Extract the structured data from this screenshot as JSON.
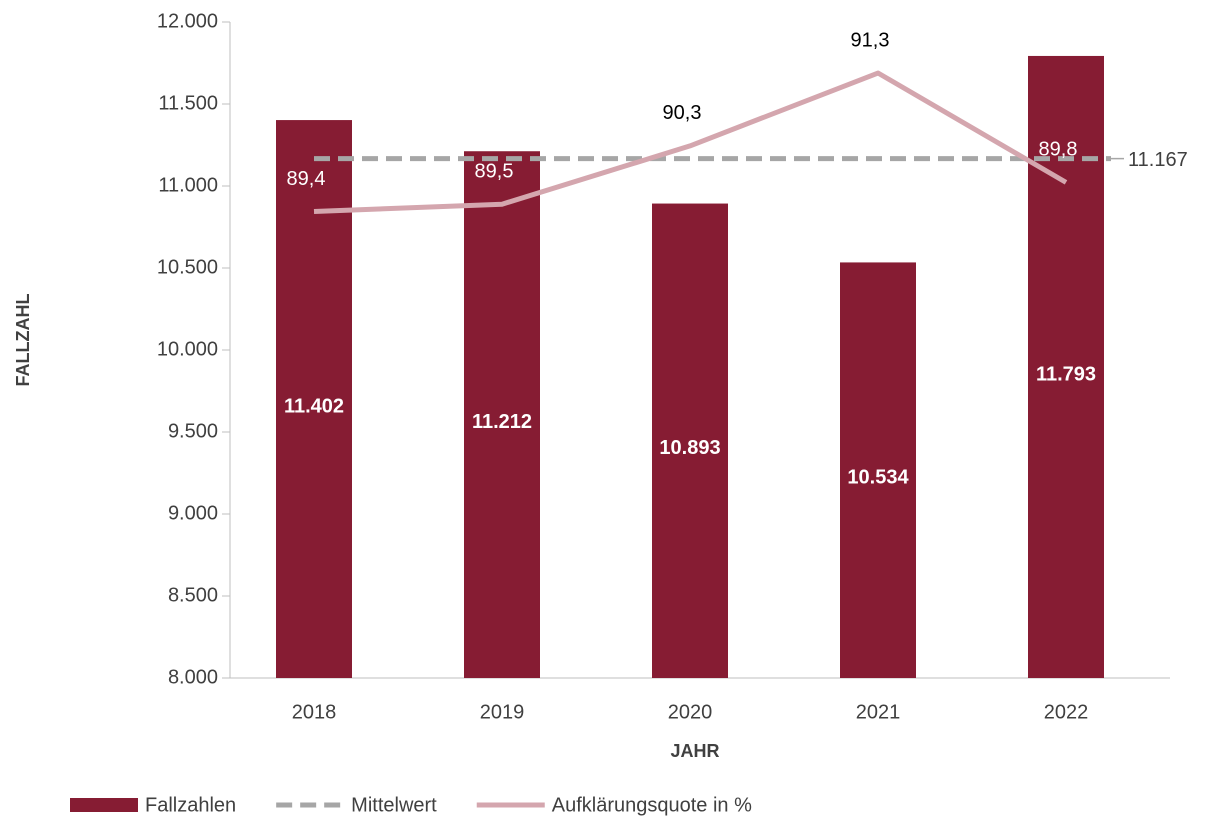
{
  "chart_data": {
    "type": "bar",
    "categories": [
      "2018",
      "2019",
      "2020",
      "2021",
      "2022"
    ],
    "series": [
      {
        "name": "Fallzahlen",
        "type": "bar",
        "color": "#861c33",
        "values": [
          11402,
          11212,
          10893,
          10534,
          11793
        ],
        "value_labels": [
          "11.402",
          "11.212",
          "10.893",
          "10.534",
          "11.793"
        ]
      },
      {
        "name": "Mittelwert",
        "type": "line",
        "dashed": true,
        "color": "#a6a6a6",
        "values": [
          11167,
          11167,
          11167,
          11167,
          11167
        ],
        "value_labels": [
          null,
          null,
          null,
          null,
          "11.167"
        ]
      },
      {
        "name": "Aufklärungsquote in %",
        "type": "line",
        "axis": "y2",
        "color": "#d4a6ae",
        "values": [
          89.4,
          89.5,
          90.3,
          91.3,
          89.8
        ],
        "value_labels": [
          "89,4",
          "89,5",
          "90,3",
          "91,3",
          "89,8"
        ]
      }
    ],
    "y_label": "FALLZAHL",
    "x_label": "JAHR",
    "ylim": [
      8000,
      12000
    ],
    "yticks": [
      {
        "value": 8000,
        "label": "8.000"
      },
      {
        "value": 8500,
        "label": "8.500"
      },
      {
        "value": 9000,
        "label": "9.000"
      },
      {
        "value": 9500,
        "label": "9.500"
      },
      {
        "value": 10000,
        "label": "10.000"
      },
      {
        "value": 10500,
        "label": "10.500"
      },
      {
        "value": 11000,
        "label": "11.000"
      },
      {
        "value": 11500,
        "label": "11.500"
      },
      {
        "value": 12000,
        "label": "12.000"
      }
    ],
    "y2lim": [
      83,
      92
    ],
    "grid": false,
    "legend": "bottom-left"
  }
}
